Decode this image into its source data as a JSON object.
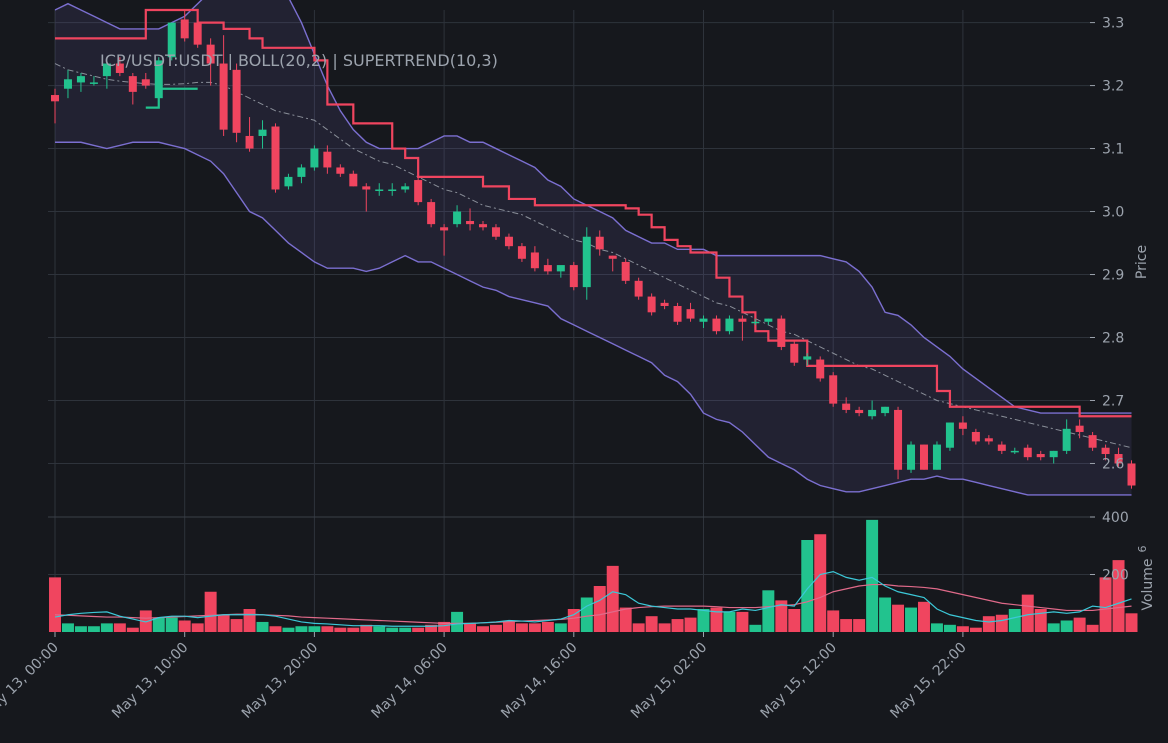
{
  "chart_data": {
    "type": "candlestick",
    "title": "ICP/USDT:USDT | BOLL(20,2) | SUPERTREND(10,3)",
    "price_axis": {
      "label": "Price",
      "ticks": [
        "3.3",
        "3.2",
        "3.1",
        "3.0",
        "2.9",
        "2.8",
        "2.7",
        "2.6"
      ],
      "ylim": [
        2.515,
        3.32
      ]
    },
    "volume_axis": {
      "label": "Volume",
      "exponent": "6",
      "ticks": [
        "400",
        "200"
      ],
      "ylim": [
        0,
        400
      ]
    },
    "x_ticks": [
      "May 13, 00:00",
      "May 13, 10:00",
      "May 13, 20:00",
      "May 14, 06:00",
      "May 14, 16:00",
      "May 15, 02:00",
      "May 15, 12:00",
      "May 15, 22:00"
    ],
    "interval_hours": 1,
    "colors": {
      "up": "#22c38e",
      "down": "#f0455f",
      "band": "#7b6fd0",
      "supertrend_down": "#f0455f",
      "supertrend_up": "#22c38e",
      "vol_ma_fast": "#3cc8d8",
      "vol_ma_slow": "#e06a8a"
    },
    "candles": [
      [
        3.185,
        3.195,
        3.14,
        3.175
      ],
      [
        3.195,
        3.225,
        3.18,
        3.21
      ],
      [
        3.205,
        3.22,
        3.19,
        3.215
      ],
      [
        3.205,
        3.215,
        3.2,
        3.205
      ],
      [
        3.215,
        3.235,
        3.195,
        3.235
      ],
      [
        3.235,
        3.245,
        3.215,
        3.22
      ],
      [
        3.215,
        3.22,
        3.17,
        3.19
      ],
      [
        3.21,
        3.22,
        3.195,
        3.2
      ],
      [
        3.18,
        3.245,
        3.18,
        3.24
      ],
      [
        3.245,
        3.3,
        3.24,
        3.3
      ],
      [
        3.305,
        3.32,
        3.27,
        3.275
      ],
      [
        3.3,
        3.31,
        3.26,
        3.265
      ],
      [
        3.265,
        3.275,
        3.2,
        3.235
      ],
      [
        3.235,
        3.28,
        3.12,
        3.13
      ],
      [
        3.225,
        3.235,
        3.11,
        3.125
      ],
      [
        3.12,
        3.15,
        3.095,
        3.1
      ],
      [
        3.12,
        3.145,
        3.1,
        3.13
      ],
      [
        3.135,
        3.14,
        3.03,
        3.035
      ],
      [
        3.04,
        3.06,
        3.035,
        3.055
      ],
      [
        3.055,
        3.075,
        3.045,
        3.07
      ],
      [
        3.07,
        3.105,
        3.065,
        3.1
      ],
      [
        3.095,
        3.105,
        3.06,
        3.07
      ],
      [
        3.07,
        3.075,
        3.055,
        3.06
      ],
      [
        3.06,
        3.065,
        3.04,
        3.04
      ],
      [
        3.04,
        3.045,
        3.0,
        3.035
      ],
      [
        3.035,
        3.045,
        3.025,
        3.035
      ],
      [
        3.035,
        3.045,
        3.025,
        3.035
      ],
      [
        3.035,
        3.045,
        3.03,
        3.04
      ],
      [
        3.05,
        3.065,
        3.01,
        3.015
      ],
      [
        3.015,
        3.02,
        2.975,
        2.98
      ],
      [
        2.975,
        2.98,
        2.93,
        2.97
      ],
      [
        2.98,
        3.01,
        2.975,
        3.0
      ],
      [
        2.985,
        3.005,
        2.97,
        2.98
      ],
      [
        2.98,
        2.985,
        2.97,
        2.975
      ],
      [
        2.975,
        2.98,
        2.955,
        2.96
      ],
      [
        2.96,
        2.965,
        2.94,
        2.945
      ],
      [
        2.945,
        2.95,
        2.92,
        2.925
      ],
      [
        2.935,
        2.945,
        2.905,
        2.91
      ],
      [
        2.915,
        2.925,
        2.9,
        2.905
      ],
      [
        2.905,
        2.91,
        2.895,
        2.915
      ],
      [
        2.915,
        2.92,
        2.875,
        2.88
      ],
      [
        2.88,
        2.975,
        2.86,
        2.96
      ],
      [
        2.96,
        2.97,
        2.93,
        2.94
      ],
      [
        2.93,
        2.93,
        2.905,
        2.925
      ],
      [
        2.92,
        2.925,
        2.885,
        2.89
      ],
      [
        2.89,
        2.895,
        2.86,
        2.865
      ],
      [
        2.865,
        2.87,
        2.835,
        2.84
      ],
      [
        2.855,
        2.86,
        2.845,
        2.85
      ],
      [
        2.85,
        2.855,
        2.82,
        2.825
      ],
      [
        2.845,
        2.855,
        2.825,
        2.83
      ],
      [
        2.825,
        2.835,
        2.815,
        2.83
      ],
      [
        2.83,
        2.835,
        2.805,
        2.81
      ],
      [
        2.81,
        2.835,
        2.805,
        2.83
      ],
      [
        2.83,
        2.835,
        2.795,
        2.825
      ],
      [
        2.825,
        2.83,
        2.82,
        2.825
      ],
      [
        2.825,
        2.83,
        2.82,
        2.83
      ],
      [
        2.83,
        2.835,
        2.78,
        2.785
      ],
      [
        2.79,
        2.795,
        2.755,
        2.76
      ],
      [
        2.765,
        2.775,
        2.755,
        2.77
      ],
      [
        2.765,
        2.77,
        2.73,
        2.735
      ],
      [
        2.74,
        2.745,
        2.69,
        2.695
      ],
      [
        2.695,
        2.705,
        2.68,
        2.685
      ],
      [
        2.685,
        2.69,
        2.675,
        2.68
      ],
      [
        2.675,
        2.7,
        2.67,
        2.685
      ],
      [
        2.68,
        2.69,
        2.675,
        2.69
      ],
      [
        2.685,
        2.69,
        2.575,
        2.59
      ],
      [
        2.59,
        2.635,
        2.585,
        2.63
      ],
      [
        2.63,
        2.63,
        2.59,
        2.59
      ],
      [
        2.59,
        2.635,
        2.59,
        2.63
      ],
      [
        2.625,
        2.665,
        2.62,
        2.665
      ],
      [
        2.665,
        2.675,
        2.645,
        2.655
      ],
      [
        2.65,
        2.655,
        2.63,
        2.635
      ],
      [
        2.64,
        2.645,
        2.63,
        2.635
      ],
      [
        2.63,
        2.635,
        2.615,
        2.62
      ],
      [
        2.62,
        2.625,
        2.615,
        2.62
      ],
      [
        2.625,
        2.63,
        2.605,
        2.61
      ],
      [
        2.615,
        2.62,
        2.605,
        2.61
      ],
      [
        2.61,
        2.62,
        2.6,
        2.62
      ],
      [
        2.62,
        2.67,
        2.615,
        2.655
      ],
      [
        2.66,
        2.67,
        2.64,
        2.65
      ],
      [
        2.645,
        2.65,
        2.62,
        2.625
      ],
      [
        2.625,
        2.63,
        2.605,
        2.615
      ],
      [
        2.615,
        2.625,
        2.595,
        2.6
      ],
      [
        2.6,
        2.605,
        2.56,
        2.565
      ]
    ],
    "volumes": [
      190,
      30,
      20,
      20,
      30,
      30,
      15,
      75,
      50,
      50,
      40,
      30,
      140,
      60,
      45,
      80,
      35,
      20,
      15,
      20,
      20,
      20,
      15,
      15,
      25,
      20,
      15,
      15,
      15,
      25,
      35,
      70,
      30,
      20,
      25,
      40,
      30,
      30,
      35,
      30,
      80,
      120,
      160,
      230,
      85,
      30,
      55,
      30,
      45,
      50,
      80,
      85,
      70,
      70,
      25,
      145,
      110,
      80,
      320,
      340,
      75,
      45,
      45,
      390,
      120,
      95,
      85,
      105,
      30,
      25,
      20,
      15,
      55,
      60,
      80,
      130,
      80,
      30,
      40,
      50,
      25,
      190,
      250,
      65
    ],
    "bollinger": {
      "mid": [
        3.235,
        3.225,
        3.22,
        3.215,
        3.21,
        3.207,
        3.205,
        3.203,
        3.202,
        3.202,
        3.203,
        3.205,
        3.205,
        3.2,
        3.19,
        3.18,
        3.17,
        3.16,
        3.155,
        3.15,
        3.145,
        3.13,
        3.115,
        3.1,
        3.09,
        3.08,
        3.075,
        3.065,
        3.055,
        3.045,
        3.035,
        3.03,
        3.02,
        3.01,
        3.005,
        3.0,
        2.995,
        2.985,
        2.975,
        2.965,
        2.955,
        2.95,
        2.94,
        2.935,
        2.925,
        2.915,
        2.905,
        2.895,
        2.885,
        2.875,
        2.865,
        2.855,
        2.85,
        2.84,
        2.83,
        2.82,
        2.81,
        2.805,
        2.795,
        2.785,
        2.775,
        2.765,
        2.755,
        2.75,
        2.74,
        2.73,
        2.72,
        2.71,
        2.7,
        2.695,
        2.69,
        2.685,
        2.68,
        2.675,
        2.67,
        2.665,
        2.66,
        2.655,
        2.65,
        2.645,
        2.64,
        2.635,
        2.63,
        2.625
      ],
      "upper": [
        3.32,
        3.33,
        3.32,
        3.31,
        3.3,
        3.29,
        3.29,
        3.29,
        3.29,
        3.3,
        3.31,
        3.33,
        3.35,
        3.36,
        3.37,
        3.37,
        3.37,
        3.36,
        3.34,
        3.3,
        3.25,
        3.2,
        3.16,
        3.13,
        3.11,
        3.1,
        3.1,
        3.1,
        3.1,
        3.11,
        3.12,
        3.12,
        3.11,
        3.11,
        3.1,
        3.09,
        3.08,
        3.07,
        3.05,
        3.04,
        3.02,
        3.01,
        3.0,
        2.99,
        2.97,
        2.96,
        2.95,
        2.95,
        2.94,
        2.94,
        2.94,
        2.93,
        2.93,
        2.93,
        2.93,
        2.93,
        2.93,
        2.93,
        2.93,
        2.93,
        2.925,
        2.92,
        2.905,
        2.88,
        2.84,
        2.835,
        2.82,
        2.8,
        2.785,
        2.77,
        2.75,
        2.735,
        2.72,
        2.705,
        2.69,
        2.685,
        2.68,
        2.68,
        2.68,
        2.68,
        2.68,
        2.68,
        2.68,
        2.68
      ],
      "lower": [
        3.11,
        3.11,
        3.11,
        3.105,
        3.1,
        3.105,
        3.11,
        3.11,
        3.11,
        3.105,
        3.1,
        3.09,
        3.08,
        3.06,
        3.03,
        3.0,
        2.99,
        2.97,
        2.95,
        2.935,
        2.92,
        2.91,
        2.91,
        2.91,
        2.905,
        2.91,
        2.92,
        2.93,
        2.92,
        2.92,
        2.91,
        2.9,
        2.89,
        2.88,
        2.875,
        2.865,
        2.86,
        2.855,
        2.85,
        2.83,
        2.82,
        2.81,
        2.8,
        2.79,
        2.78,
        2.77,
        2.76,
        2.74,
        2.73,
        2.71,
        2.68,
        2.67,
        2.665,
        2.65,
        2.63,
        2.61,
        2.6,
        2.59,
        2.575,
        2.565,
        2.56,
        2.555,
        2.555,
        2.56,
        2.565,
        2.57,
        2.575,
        2.575,
        2.58,
        2.575,
        2.575,
        2.57,
        2.565,
        2.56,
        2.555,
        2.55,
        2.55,
        2.55,
        2.55,
        2.55,
        2.55,
        2.55,
        2.55,
        2.55
      ]
    },
    "supertrend_down": [
      [
        0,
        3.275
      ],
      [
        7,
        3.275
      ],
      [
        7,
        3.32
      ],
      [
        11,
        3.32
      ],
      [
        11,
        3.3
      ],
      [
        13,
        3.3
      ],
      [
        13,
        3.29
      ],
      [
        15,
        3.29
      ],
      [
        15,
        3.275
      ],
      [
        16,
        3.275
      ],
      [
        16,
        3.26
      ],
      [
        20,
        3.26
      ],
      [
        20,
        3.24
      ],
      [
        21,
        3.24
      ],
      [
        21,
        3.17
      ],
      [
        23,
        3.17
      ],
      [
        23,
        3.14
      ],
      [
        26,
        3.14
      ],
      [
        26,
        3.1
      ],
      [
        27,
        3.1
      ],
      [
        27,
        3.085
      ],
      [
        28,
        3.085
      ],
      [
        28,
        3.055
      ],
      [
        33,
        3.055
      ],
      [
        33,
        3.04
      ],
      [
        35,
        3.04
      ],
      [
        35,
        3.02
      ],
      [
        37,
        3.02
      ],
      [
        37,
        3.01
      ],
      [
        44,
        3.01
      ],
      [
        44,
        3.005
      ],
      [
        45,
        3.005
      ],
      [
        45,
        2.995
      ],
      [
        46,
        2.995
      ],
      [
        46,
        2.975
      ],
      [
        47,
        2.975
      ],
      [
        47,
        2.955
      ],
      [
        48,
        2.955
      ],
      [
        48,
        2.945
      ],
      [
        49,
        2.945
      ],
      [
        49,
        2.935
      ],
      [
        51,
        2.935
      ],
      [
        51,
        2.895
      ],
      [
        52,
        2.895
      ],
      [
        52,
        2.865
      ],
      [
        53,
        2.865
      ],
      [
        53,
        2.84
      ],
      [
        54,
        2.84
      ],
      [
        54,
        2.81
      ],
      [
        55,
        2.81
      ],
      [
        55,
        2.795
      ],
      [
        58,
        2.795
      ],
      [
        58,
        2.755
      ],
      [
        68,
        2.755
      ],
      [
        68,
        2.715
      ],
      [
        69,
        2.715
      ],
      [
        69,
        2.69
      ],
      [
        79,
        2.69
      ],
      [
        79,
        2.675
      ],
      [
        83,
        2.675
      ]
    ],
    "supertrend_up": [
      [
        7,
        3.165
      ],
      [
        8,
        3.165
      ],
      [
        8,
        3.195
      ],
      [
        11,
        3.195
      ]
    ],
    "volume_ma_fast": [
      52,
      60,
      65,
      68,
      70,
      55,
      45,
      35,
      50,
      55,
      55,
      50,
      55,
      60,
      60,
      60,
      60,
      55,
      45,
      35,
      30,
      28,
      25,
      22,
      22,
      22,
      20,
      20,
      20,
      20,
      22,
      28,
      30,
      32,
      35,
      40,
      38,
      35,
      40,
      45,
      60,
      90,
      110,
      140,
      130,
      100,
      90,
      85,
      80,
      80,
      75,
      70,
      70,
      80,
      75,
      85,
      95,
      90,
      150,
      200,
      210,
      190,
      180,
      190,
      160,
      140,
      130,
      120,
      80,
      60,
      50,
      40,
      35,
      40,
      50,
      60,
      65,
      70,
      65,
      70,
      90,
      85,
      100,
      115
    ],
    "volume_ma_slow": [
      60,
      58,
      56,
      54,
      52,
      52,
      50,
      48,
      50,
      52,
      54,
      56,
      58,
      60,
      62,
      62,
      60,
      58,
      56,
      52,
      50,
      48,
      46,
      44,
      42,
      40,
      38,
      36,
      34,
      32,
      30,
      30,
      30,
      32,
      34,
      36,
      38,
      40,
      42,
      44,
      48,
      55,
      60,
      70,
      80,
      85,
      88,
      90,
      90,
      90,
      90,
      88,
      85,
      85,
      85,
      88,
      92,
      95,
      105,
      120,
      140,
      150,
      160,
      165,
      165,
      160,
      158,
      155,
      150,
      140,
      130,
      120,
      110,
      100,
      95,
      90,
      85,
      80,
      75,
      75,
      75,
      80,
      85,
      90
    ]
  }
}
